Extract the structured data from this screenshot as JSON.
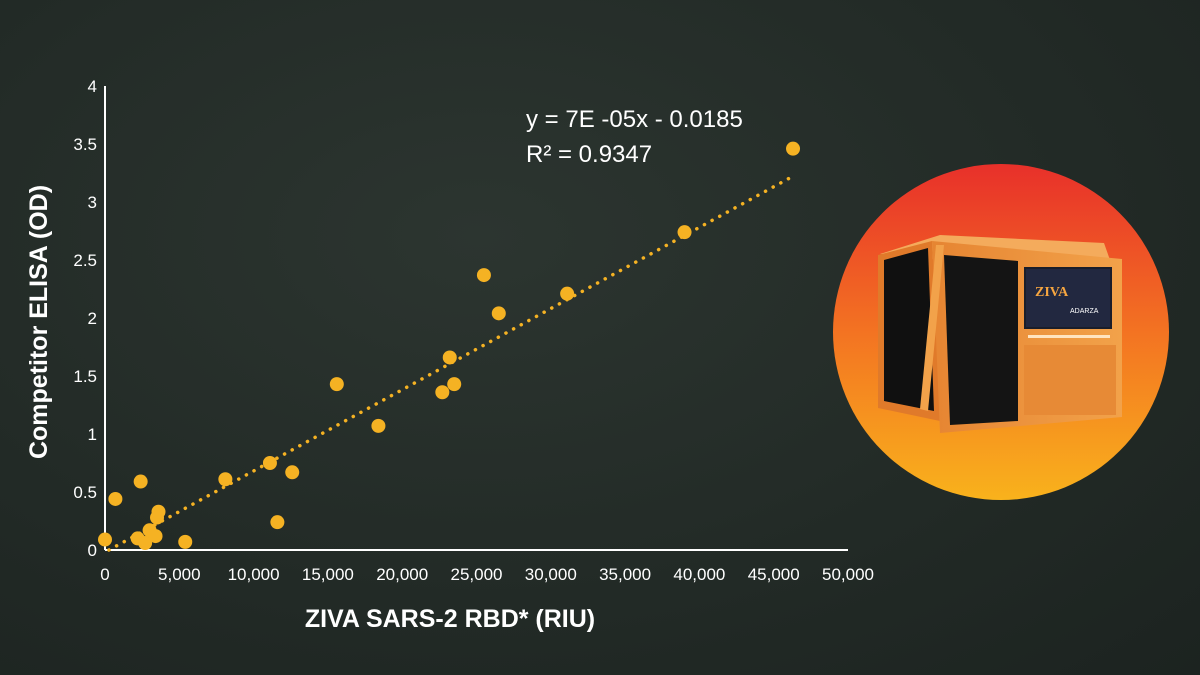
{
  "chart_data": {
    "type": "scatter",
    "xlabel": "ZIVA SARS-2 RBD* (RIU)",
    "ylabel": "Competitor ELISA (OD)",
    "xlim": [
      0,
      50000
    ],
    "ylim": [
      0,
      4
    ],
    "x_ticks": [
      "0",
      "5,000",
      "10,000",
      "15,000",
      "20,000",
      "25,000",
      "30,000",
      "35,000",
      "40,000",
      "45,000",
      "50,000"
    ],
    "y_ticks": [
      "0",
      "0.5",
      "1",
      "1.5",
      "2",
      "2.5",
      "3",
      "3.5",
      "4"
    ],
    "series": [
      {
        "points": [
          {
            "x": 0,
            "y": 0.09
          },
          {
            "x": 700,
            "y": 0.44
          },
          {
            "x": 2200,
            "y": 0.1
          },
          {
            "x": 2400,
            "y": 0.59
          },
          {
            "x": 2700,
            "y": 0.06
          },
          {
            "x": 3000,
            "y": 0.17
          },
          {
            "x": 3400,
            "y": 0.12
          },
          {
            "x": 3500,
            "y": 0.28
          },
          {
            "x": 3600,
            "y": 0.33
          },
          {
            "x": 5400,
            "y": 0.07
          },
          {
            "x": 8100,
            "y": 0.61
          },
          {
            "x": 11100,
            "y": 0.75
          },
          {
            "x": 11600,
            "y": 0.24
          },
          {
            "x": 12600,
            "y": 0.67
          },
          {
            "x": 15600,
            "y": 1.43
          },
          {
            "x": 18400,
            "y": 1.07
          },
          {
            "x": 22700,
            "y": 1.36
          },
          {
            "x": 23200,
            "y": 1.66
          },
          {
            "x": 23500,
            "y": 1.43
          },
          {
            "x": 25500,
            "y": 2.37
          },
          {
            "x": 26500,
            "y": 2.04
          },
          {
            "x": 31100,
            "y": 2.21
          },
          {
            "x": 39000,
            "y": 2.74
          },
          {
            "x": 46300,
            "y": 3.46
          }
        ]
      }
    ],
    "trendline": {
      "type": "linear",
      "slope": 7e-05,
      "intercept": -0.0185,
      "x_range": [
        0,
        46300
      ],
      "equation": "y = 7E -05x  -  0.0185",
      "r_squared": "R² = 0.9347"
    },
    "colors": {
      "point": "#f5b223",
      "trendline": "#f5b223",
      "axis": "#ffffff",
      "background": "#252d29"
    },
    "grid": false,
    "legend": "none"
  },
  "device": {
    "logo_text": "ZIVA",
    "brand_text": "ADARZA",
    "icon": "ziva-instrument-image"
  }
}
